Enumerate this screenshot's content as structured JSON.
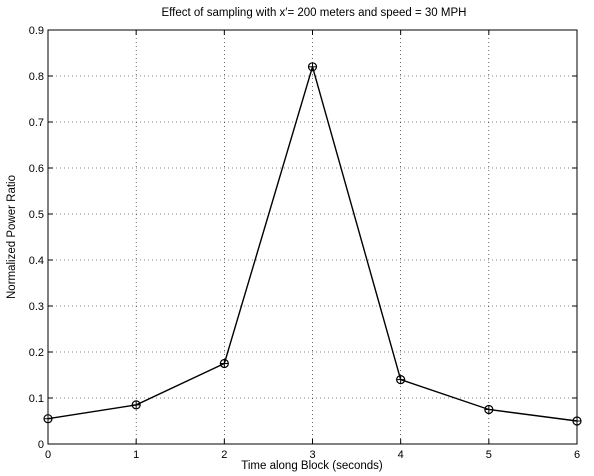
{
  "chart_data": {
    "type": "line",
    "title": "Effect of sampling with x′= 200 meters and speed = 30 MPH",
    "xlabel": "Time along Block (seconds)",
    "ylabel": "Normalized Power Ratio",
    "xlim": [
      0,
      6
    ],
    "ylim": [
      0,
      0.9
    ],
    "xticks": [
      0,
      1,
      2,
      3,
      4,
      5,
      6
    ],
    "xtick_labels": [
      "0",
      "1",
      "2",
      "3",
      "4",
      "5",
      "6"
    ],
    "yticks": [
      0,
      0.1,
      0.2,
      0.3,
      0.4,
      0.5,
      0.6,
      0.7,
      0.8,
      0.9
    ],
    "ytick_labels": [
      "0",
      "0.1",
      "0.2",
      "0.3",
      "0.4",
      "0.5",
      "0.6",
      "0.7",
      "0.8",
      "0.9"
    ],
    "grid": true,
    "grid_style": "dotted",
    "marker": "circle-plus",
    "line_color": "#000000",
    "series": [
      {
        "x": [
          0,
          1,
          2,
          3,
          4,
          5,
          6
        ],
        "y": [
          0.055,
          0.085,
          0.175,
          0.82,
          0.14,
          0.075,
          0.05
        ]
      }
    ]
  }
}
